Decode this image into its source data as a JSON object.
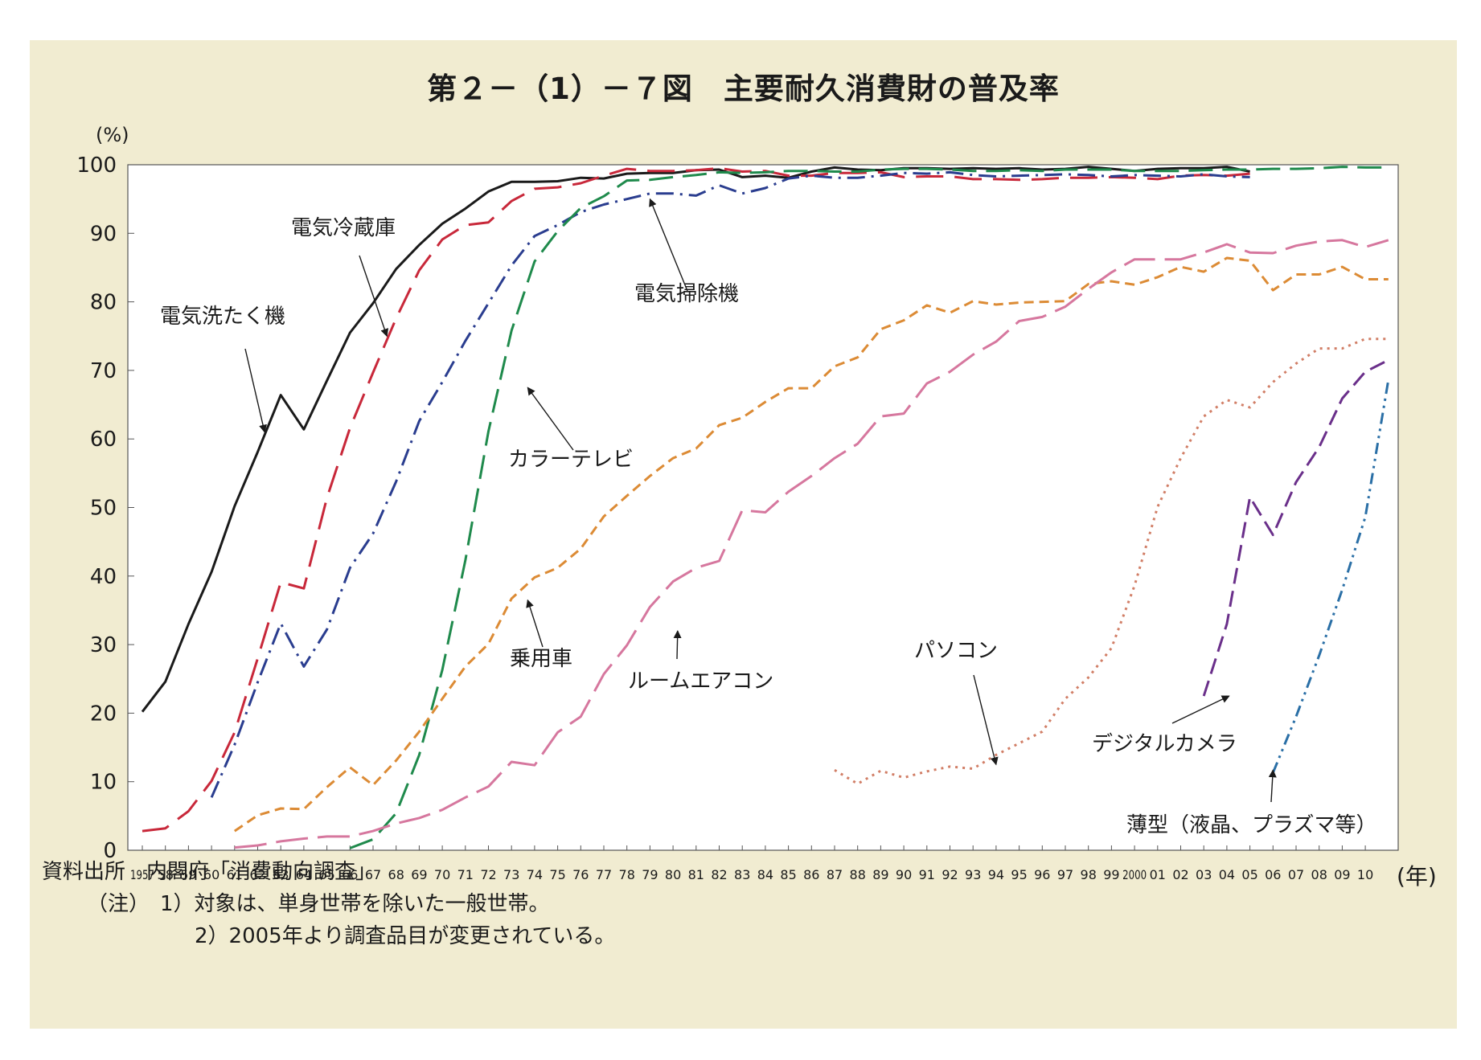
{
  "chart_data": {
    "type": "line",
    "title": "第２－（1）－７図　主要耐久消費財の普及率",
    "ylabel": "(%)",
    "xlabel": "(年)",
    "ylim": [
      0,
      100
    ],
    "yticks": [
      0,
      10,
      20,
      30,
      40,
      50,
      60,
      70,
      80,
      90,
      100
    ],
    "xlim": [
      1957,
      2011
    ],
    "x_tick_labels": [
      "1957",
      "58",
      "59",
      "60",
      "61",
      "62",
      "63",
      "64",
      "65",
      "66",
      "67",
      "68",
      "69",
      "70",
      "71",
      "72",
      "73",
      "74",
      "75",
      "76",
      "77",
      "78",
      "79",
      "80",
      "81",
      "82",
      "83",
      "84",
      "85",
      "86",
      "87",
      "88",
      "89",
      "90",
      "91",
      "92",
      "93",
      "94",
      "95",
      "96",
      "97",
      "98",
      "99",
      "2000",
      "01",
      "02",
      "03",
      "04",
      "05",
      "06",
      "07",
      "08",
      "09",
      "10"
    ],
    "grid": false,
    "series": [
      {
        "name": "電気洗たく機",
        "color": "#1a1a1a",
        "dash": "",
        "x": [
          1957,
          1958,
          1959,
          1960,
          1961,
          1962,
          1963,
          1964,
          1965,
          1966,
          1967,
          1968,
          1969,
          1970,
          1971,
          1972,
          1973,
          1974,
          1975,
          1976,
          1977,
          1978,
          1979,
          1980,
          1981,
          1982,
          1983,
          1984,
          1985,
          1986,
          1987,
          1988,
          1989,
          1990,
          1991,
          1992,
          1993,
          1994,
          1995,
          1996,
          1997,
          1998,
          1999,
          2000,
          2001,
          2002,
          2003,
          2004,
          2005
        ],
        "y": [
          20.2,
          24.6,
          33,
          40.6,
          50.2,
          58.1,
          66.4,
          61.4,
          68.5,
          75.5,
          79.8,
          84.8,
          88.3,
          91.4,
          93.6,
          96.1,
          97.5,
          97.5,
          97.6,
          98.1,
          98,
          98.7,
          98.8,
          98.8,
          99.2,
          99.3,
          98.2,
          98.4,
          98.1,
          99,
          99.6,
          99.3,
          99.2,
          99.5,
          99.5,
          99.4,
          99.5,
          99.4,
          99.5,
          99.3,
          99.4,
          99.7,
          99.4,
          99.1,
          99.4,
          99.5,
          99.5,
          99.7,
          99
        ]
      },
      {
        "name": "電気冷蔵庫",
        "color": "#c8283a",
        "dash": "34,14",
        "x": [
          1957,
          1958,
          1959,
          1960,
          1961,
          1962,
          1963,
          1964,
          1965,
          1966,
          1967,
          1968,
          1969,
          1970,
          1971,
          1972,
          1973,
          1974,
          1975,
          1976,
          1977,
          1978,
          1979,
          1980,
          1981,
          1982,
          1983,
          1984,
          1985,
          1986,
          1987,
          1988,
          1989,
          1990,
          1991,
          1992,
          1993,
          1994,
          1995,
          1996,
          1997,
          1998,
          1999,
          2000,
          2001,
          2002,
          2003,
          2004,
          2005
        ],
        "y": [
          2.8,
          3.2,
          5.7,
          10.1,
          17.2,
          28,
          39.1,
          38.2,
          51.4,
          61.6,
          69.7,
          77.6,
          84.6,
          89.1,
          91.2,
          91.6,
          94.7,
          96.5,
          96.7,
          97.3,
          98.4,
          99.4,
          99.1,
          99.1,
          99.2,
          99.5,
          99,
          99.1,
          98.4,
          98.4,
          98.8,
          98.8,
          98.9,
          98.2,
          98.3,
          98.3,
          97.9,
          97.9,
          97.8,
          97.9,
          98.1,
          98.1,
          98.2,
          98.1,
          97.9,
          98.4,
          98.5,
          98.4,
          98.7
        ]
      },
      {
        "name": "電気掃除機",
        "color": "#2a3d8f",
        "dash": "22,8,3,8",
        "x": [
          1960,
          1961,
          1962,
          1963,
          1964,
          1965,
          1966,
          1967,
          1968,
          1969,
          1970,
          1971,
          1972,
          1973,
          1974,
          1975,
          1976,
          1977,
          1978,
          1979,
          1980,
          1981,
          1982,
          1983,
          1984,
          1985,
          1986,
          1987,
          1988,
          1989,
          1990,
          1991,
          1992,
          1993,
          1994,
          1995,
          1996,
          1997,
          1998,
          1999,
          2000,
          2001,
          2002,
          2003,
          2004,
          2005
        ],
        "y": [
          7.7,
          15.4,
          24.5,
          33.1,
          26.8,
          32.2,
          41.2,
          46.2,
          53.8,
          62.6,
          68.3,
          74.3,
          79.8,
          85.3,
          89.6,
          91.2,
          93.1,
          94.2,
          95,
          95.8,
          95.8,
          95.5,
          97,
          95.8,
          96.6,
          98,
          98.4,
          98.1,
          98.1,
          98.4,
          98.8,
          98.7,
          98.9,
          98.5,
          98.3,
          98.4,
          98.5,
          98.6,
          98.5,
          98.3,
          98.5,
          98.4,
          98.3,
          98.6,
          98.3,
          98.2
        ]
      },
      {
        "name": "カラーテレビ",
        "color": "#1f8a4c",
        "dash": "30,12",
        "x": [
          1966,
          1967,
          1968,
          1969,
          1970,
          1971,
          1972,
          1973,
          1974,
          1975,
          1976,
          1977,
          1978,
          1979,
          1980,
          1981,
          1982,
          1983,
          1984,
          1985,
          1986,
          1987,
          1988,
          1989,
          1990,
          1991,
          1992,
          1993,
          1994,
          1995,
          1996,
          1997,
          1998,
          1999,
          2000,
          2001,
          2002,
          2003,
          2004,
          2005,
          2006,
          2007,
          2008,
          2009,
          2010,
          2011
        ],
        "y": [
          0.3,
          1.6,
          5.4,
          13.9,
          26.3,
          42.3,
          61.1,
          75.8,
          85.9,
          90.3,
          93.7,
          95.4,
          97.7,
          97.8,
          98.2,
          98.5,
          98.9,
          98.8,
          98.9,
          99.1,
          99.1,
          99,
          99,
          99.3,
          99.4,
          99.4,
          99.3,
          99.1,
          99.1,
          99.2,
          99.1,
          99.3,
          99.3,
          99.3,
          99.1,
          99.1,
          99.1,
          99.2,
          99.3,
          99.3,
          99.4,
          99.4,
          99.5,
          99.7,
          99.6,
          99.6
        ]
      },
      {
        "name": "乗用車",
        "color": "#dc8b35",
        "dash": "12,7",
        "x": [
          1961,
          1962,
          1963,
          1964,
          1965,
          1966,
          1967,
          1968,
          1969,
          1970,
          1971,
          1972,
          1973,
          1974,
          1975,
          1976,
          1977,
          1978,
          1979,
          1980,
          1981,
          1982,
          1983,
          1984,
          1985,
          1986,
          1987,
          1988,
          1989,
          1990,
          1991,
          1992,
          1993,
          1994,
          1995,
          1996,
          1997,
          1998,
          1999,
          2000,
          2001,
          2002,
          2003,
          2004,
          2005,
          2006,
          2007,
          2008,
          2009,
          2010,
          2011
        ],
        "y": [
          2.8,
          5.1,
          6.1,
          6,
          9.2,
          12.1,
          9.5,
          13.1,
          17.3,
          22.1,
          26.8,
          30.1,
          36.7,
          39.8,
          41.2,
          44,
          48.7,
          51.7,
          54.6,
          57.2,
          58.6,
          62,
          63.1,
          65.4,
          67.4,
          67.4,
          70.6,
          71.9,
          76,
          77.3,
          79.5,
          78.4,
          80.1,
          79.6,
          79.9,
          80,
          80.1,
          82.6,
          83,
          82.5,
          83.6,
          85.1,
          84.4,
          86.4,
          86,
          81.7,
          84,
          84,
          85.1,
          83.3,
          83.3
        ]
      },
      {
        "name": "ルームエアコン",
        "color": "#d6779e",
        "dash": "40,12",
        "x": [
          1961,
          1962,
          1963,
          1964,
          1965,
          1966,
          1967,
          1968,
          1969,
          1970,
          1971,
          1972,
          1973,
          1974,
          1975,
          1976,
          1977,
          1978,
          1979,
          1980,
          1981,
          1982,
          1983,
          1984,
          1985,
          1986,
          1987,
          1988,
          1989,
          1990,
          1991,
          1992,
          1993,
          1994,
          1995,
          1996,
          1997,
          1998,
          1999,
          2000,
          2001,
          2002,
          2003,
          2004,
          2005,
          2006,
          2007,
          2008,
          2009,
          2010,
          2011
        ],
        "y": [
          0.4,
          0.7,
          1.3,
          1.7,
          2,
          2,
          2.8,
          3.9,
          4.7,
          5.9,
          7.7,
          9.3,
          12.9,
          12.4,
          17.2,
          19.5,
          25.7,
          29.9,
          35.5,
          39.2,
          41.2,
          42.2,
          49.6,
          49.3,
          52.3,
          54.6,
          57.2,
          59.3,
          63.3,
          63.7,
          68.1,
          69.8,
          72.3,
          74.2,
          77.2,
          77.8,
          79.3,
          81.9,
          84.3,
          86.2,
          86.2,
          86.2,
          87.2,
          88.4,
          87.2,
          87.1,
          88.2,
          88.8,
          89,
          88,
          89
        ]
      },
      {
        "name": "パソコン",
        "color": "#d17e66",
        "dash": "3,6",
        "x": [
          1987,
          1988,
          1989,
          1990,
          1991,
          1992,
          1993,
          1994,
          1995,
          1996,
          1997,
          1998,
          1999,
          2000,
          2001,
          2002,
          2003,
          2004,
          2005,
          2006,
          2007,
          2008,
          2009,
          2010,
          2011
        ],
        "y": [
          11.7,
          9.7,
          11.6,
          10.6,
          11.5,
          12.2,
          11.9,
          13.9,
          15.6,
          17.3,
          22.1,
          25.2,
          29.5,
          38.6,
          50.1,
          57.2,
          63.3,
          65.7,
          64.6,
          68.3,
          71,
          73.2,
          73.2,
          74.6,
          74.6
        ]
      },
      {
        "name": "デジタルカメラ",
        "color": "#6a2f8a",
        "dash": "20,9",
        "x": [
          2003,
          2004,
          2005,
          2006,
          2007,
          2008,
          2009,
          2010,
          2011
        ],
        "y": [
          22.5,
          33,
          51.5,
          46,
          53.7,
          58.8,
          65.9,
          69.8,
          71.5
        ]
      },
      {
        "name": "薄型（液晶、プラズマ等）",
        "color": "#2a6fa6",
        "dash": "14,6,3,6,3,6",
        "x": [
          2006,
          2007,
          2008,
          2009,
          2010,
          2011
        ],
        "y": [
          11.3,
          19.5,
          28.4,
          38,
          48.6,
          68.6
        ]
      }
    ],
    "annotations": [
      {
        "text": "電気洗たく機",
        "series": "電気洗たく機"
      },
      {
        "text": "電気冷蔵庫",
        "series": "電気冷蔵庫"
      },
      {
        "text": "電気掃除機",
        "series": "電気掃除機"
      },
      {
        "text": "カラーテレビ",
        "series": "カラーテレビ"
      },
      {
        "text": "乗用車",
        "series": "乗用車"
      },
      {
        "text": "ルームエアコン",
        "series": "ルームエアコン"
      },
      {
        "text": "パソコン",
        "series": "パソコン"
      },
      {
        "text": "デジタルカメラ",
        "series": "デジタルカメラ"
      },
      {
        "text": "薄型（液晶、プラズマ等）",
        "series": "薄型（液晶、プラズマ等）"
      }
    ]
  },
  "notes": {
    "source": "資料出所　内閣府「消費動向調査」",
    "note1": "（注）　1）対象は、単身世帯を除いた一般世帯。",
    "note2": "2）2005年より調査品目が変更されている。"
  },
  "colors": {
    "panel_background": "#f1ecd1",
    "plot_background": "#ffffff"
  }
}
